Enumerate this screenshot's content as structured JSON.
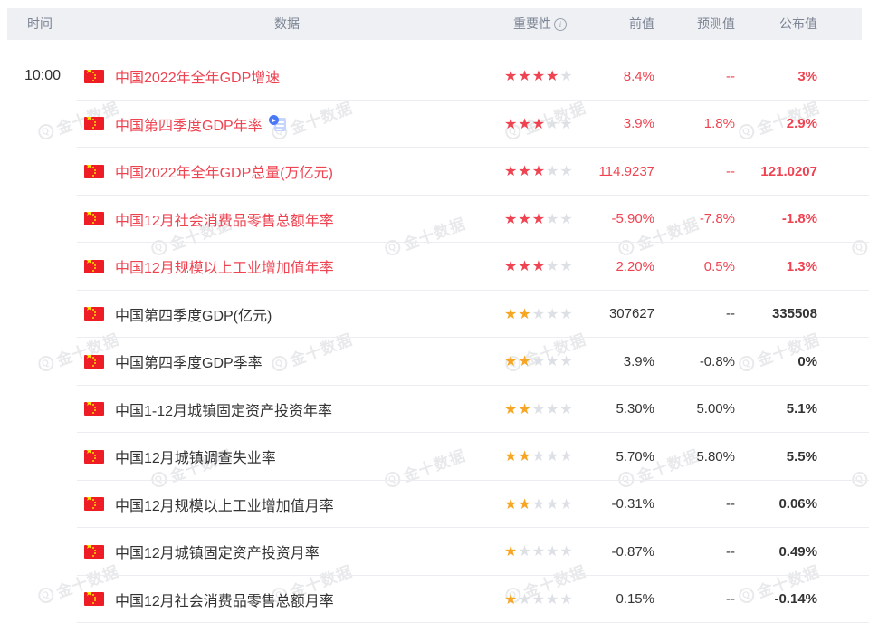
{
  "watermark": {
    "logo": "Q",
    "text": "金十数据"
  },
  "header": {
    "time": "时间",
    "data": "数据",
    "importance": "重要性",
    "info_icon": "i",
    "previous": "前值",
    "forecast": "预测值",
    "published": "公布值"
  },
  "colors": {
    "red": "#ef4351",
    "orange": "#f6a623",
    "star_gray": "#dde0e5",
    "dark_text": "#333333",
    "header_bg": "#eef0f4",
    "header_text": "#7c8493",
    "divider": "#ebedf0",
    "flag_red": "#ee1c25",
    "flag_yellow": "#ffde00"
  },
  "rows": [
    {
      "time": "10:00",
      "name": "中国2022年全年GDP增速",
      "stars": 4,
      "highlight": true,
      "has_video": false,
      "previous": "8.4%",
      "forecast": "--",
      "published": "3%"
    },
    {
      "time": "",
      "name": "中国第四季度GDP年率",
      "stars": 3,
      "highlight": true,
      "has_video": true,
      "previous": "3.9%",
      "forecast": "1.8%",
      "published": "2.9%"
    },
    {
      "time": "",
      "name": "中国2022年全年GDP总量(万亿元)",
      "stars": 3,
      "highlight": true,
      "has_video": false,
      "previous": "114.9237",
      "forecast": "--",
      "published": "121.0207"
    },
    {
      "time": "",
      "name": "中国12月社会消费品零售总额年率",
      "stars": 3,
      "highlight": true,
      "has_video": false,
      "previous": "-5.90%",
      "forecast": "-7.8%",
      "published": "-1.8%"
    },
    {
      "time": "",
      "name": "中国12月规模以上工业增加值年率",
      "stars": 3,
      "highlight": true,
      "has_video": false,
      "previous": "2.20%",
      "forecast": "0.5%",
      "published": "1.3%"
    },
    {
      "time": "",
      "name": "中国第四季度GDP(亿元)",
      "stars": 2,
      "highlight": false,
      "has_video": false,
      "previous": "307627",
      "forecast": "--",
      "published": "335508"
    },
    {
      "time": "",
      "name": "中国第四季度GDP季率",
      "stars": 2,
      "highlight": false,
      "has_video": false,
      "previous": "3.9%",
      "forecast": "-0.8%",
      "published": "0%"
    },
    {
      "time": "",
      "name": "中国1-12月城镇固定资产投资年率",
      "stars": 2,
      "highlight": false,
      "has_video": false,
      "previous": "5.30%",
      "forecast": "5.00%",
      "published": "5.1%"
    },
    {
      "time": "",
      "name": "中国12月城镇调查失业率",
      "stars": 2,
      "highlight": false,
      "has_video": false,
      "previous": "5.70%",
      "forecast": "5.80%",
      "published": "5.5%"
    },
    {
      "time": "",
      "name": "中国12月规模以上工业增加值月率",
      "stars": 2,
      "highlight": false,
      "has_video": false,
      "previous": "-0.31%",
      "forecast": "--",
      "published": "0.06%"
    },
    {
      "time": "",
      "name": "中国12月城镇固定资产投资月率",
      "stars": 1,
      "highlight": false,
      "has_video": false,
      "previous": "-0.87%",
      "forecast": "--",
      "published": "0.49%"
    },
    {
      "time": "",
      "name": "中国12月社会消费品零售总额月率",
      "stars": 1,
      "highlight": false,
      "has_video": false,
      "previous": "0.15%",
      "forecast": "--",
      "published": "-0.14%"
    }
  ]
}
